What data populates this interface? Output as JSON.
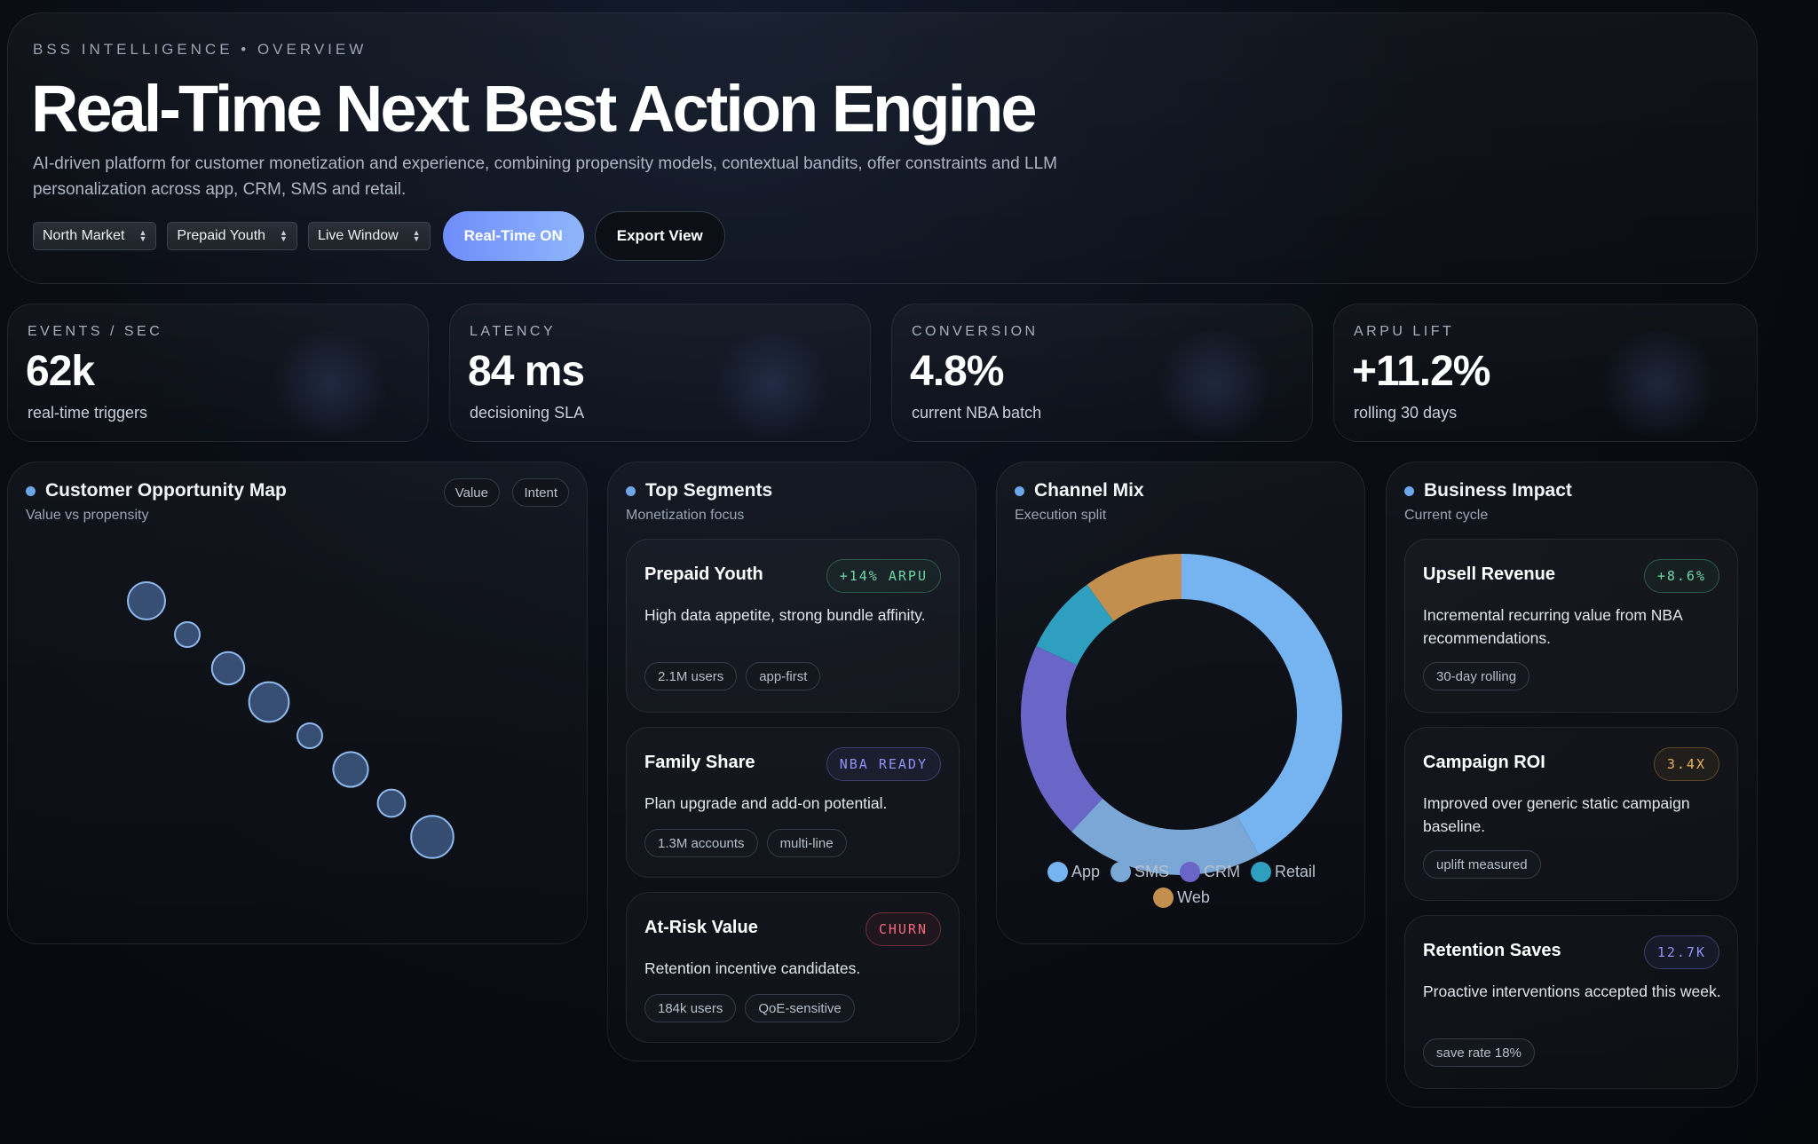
{
  "hero": {
    "eyebrow": "BSS INTELLIGENCE • OVERVIEW",
    "title": "Real-Time Next Best Action Engine",
    "description": "AI-driven platform for customer monetization and experience, combining propensity models, contextual bandits, offer constraints and LLM personalization across app, CRM, SMS and retail.",
    "selects": [
      "North Market",
      "Prepaid Youth",
      "Live Window"
    ],
    "primary_button": "Real-Time ON",
    "secondary_button": "Export View"
  },
  "kpis": [
    {
      "label": "EVENTS / SEC",
      "value": "62k",
      "sub": "real-time triggers"
    },
    {
      "label": "LATENCY",
      "value": "84 ms",
      "sub": "decisioning SLA"
    },
    {
      "label": "CONVERSION",
      "value": "4.8%",
      "sub": "current NBA batch"
    },
    {
      "label": "ARPU LIFT",
      "value": "+11.2%",
      "sub": "rolling 30 days"
    }
  ],
  "opportunity": {
    "title": "Customer Opportunity Map",
    "subtitle": "Value vs propensity",
    "tags": [
      "Value",
      "Intent"
    ],
    "chart_data": {
      "type": "scatter",
      "x": [
        1,
        2,
        3,
        4,
        5,
        6,
        7,
        8
      ],
      "y": [
        8,
        7,
        6,
        5,
        4,
        3,
        2,
        1
      ],
      "size": [
        3,
        2,
        2.6,
        3.2,
        2,
        2.8,
        2.2,
        3.4
      ],
      "xlim": [
        0,
        10
      ],
      "ylim": [
        0,
        10
      ],
      "grid": false
    }
  },
  "segments": {
    "title": "Top Segments",
    "subtitle": "Monetization focus",
    "items": [
      {
        "title": "Prepaid Youth",
        "badge": "+14% ARPU",
        "desc": "High data appetite, strong bundle affinity.",
        "pills": [
          "2.1M users",
          "app-first"
        ],
        "badge_color": "#6fd6a6"
      },
      {
        "title": "Family Share",
        "badge": "NBA READY",
        "desc": "Plan upgrade and add-on potential.",
        "pills": [
          "1.3M accounts",
          "multi-line"
        ],
        "badge_color": "#8f93f5"
      },
      {
        "title": "At-Risk Value",
        "badge": "CHURN",
        "desc": "Retention incentive candidates.",
        "pills": [
          "184k users",
          "QoE-sensitive"
        ],
        "badge_color": "#f06a7c"
      }
    ]
  },
  "channel": {
    "title": "Channel Mix",
    "subtitle": "Execution split",
    "chart_data": {
      "type": "pie",
      "categories": [
        "App",
        "SMS",
        "CRM",
        "Retail",
        "Web"
      ],
      "values": [
        42,
        20,
        20,
        8,
        10
      ],
      "colors": [
        "#76b3f1",
        "#7ba7d6",
        "#6a66c7",
        "#2f9fbf",
        "#c28f4e"
      ],
      "legend": "bottom"
    }
  },
  "impact": {
    "title": "Business Impact",
    "subtitle": "Current cycle",
    "items": [
      {
        "title": "Upsell Revenue",
        "badge": "+8.6%",
        "desc": "Incremental recurring value from NBA recommendations.",
        "pills": [
          "30-day rolling"
        ],
        "badge_color": "#6fd6a6"
      },
      {
        "title": "Campaign ROI",
        "badge": "3.4X",
        "desc": "Improved over generic static campaign baseline.",
        "pills": [
          "uplift measured"
        ],
        "badge_color": "#e6b45c"
      },
      {
        "title": "Retention Saves",
        "badge": "12.7K",
        "desc": "Proactive interventions accepted this week.",
        "pills": [
          "save rate 18%"
        ],
        "badge_color": "#8f93f5"
      }
    ]
  }
}
